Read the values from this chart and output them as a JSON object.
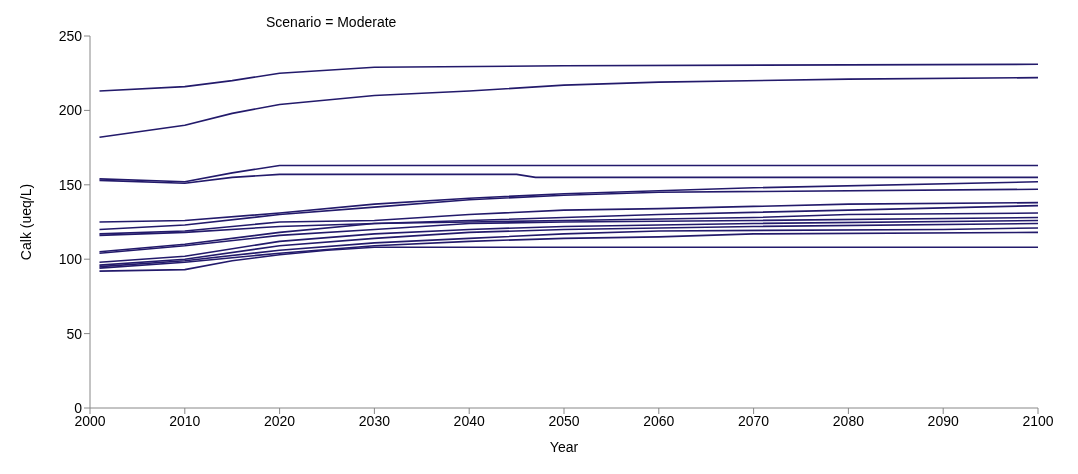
{
  "chart_data": {
    "type": "line",
    "title": "Scenario = Moderate",
    "xlabel": "Year",
    "ylabel": "Calk  (ueq/L)",
    "xlim": [
      2000,
      2100
    ],
    "xticks": [
      2000,
      2010,
      2020,
      2030,
      2040,
      2050,
      2060,
      2070,
      2080,
      2090,
      2100
    ],
    "ylim": [
      0,
      250
    ],
    "yticks": [
      0,
      50,
      100,
      150,
      200,
      250
    ],
    "grid": false,
    "marker": "none",
    "line_style": "solid",
    "series": [
      {
        "color": "#231a6b",
        "x": [
          2001,
          2010,
          2015,
          2020,
          2030,
          2050,
          2100
        ],
        "values": [
          213,
          216,
          220,
          225,
          229,
          230,
          231
        ]
      },
      {
        "color": "#231a6b",
        "x": [
          2001,
          2010,
          2015,
          2020,
          2030,
          2040,
          2050,
          2060,
          2080,
          2100
        ],
        "values": [
          182,
          190,
          198,
          204,
          210,
          213,
          217,
          219,
          221,
          222
        ]
      },
      {
        "color": "#231a6b",
        "x": [
          2001,
          2010,
          2015,
          2020,
          2050,
          2100
        ],
        "values": [
          154,
          152,
          158,
          163,
          163,
          163
        ]
      },
      {
        "color": "#231a6b",
        "x": [
          2001,
          2010,
          2015,
          2020,
          2045,
          2047,
          2100
        ],
        "values": [
          153,
          151,
          155,
          157,
          157,
          155,
          155
        ]
      },
      {
        "color": "#231a6b",
        "x": [
          2001,
          2010,
          2020,
          2030,
          2040,
          2050,
          2070,
          2100
        ],
        "values": [
          125,
          126,
          131,
          137,
          141,
          144,
          148,
          152
        ]
      },
      {
        "color": "#231a6b",
        "x": [
          2001,
          2010,
          2020,
          2030,
          2040,
          2050,
          2060,
          2100
        ],
        "values": [
          120,
          123,
          130,
          135,
          140,
          143,
          145,
          147
        ]
      },
      {
        "color": "#231a6b",
        "x": [
          2001,
          2010,
          2020,
          2030,
          2040,
          2050,
          2060,
          2080,
          2100
        ],
        "values": [
          117,
          119,
          125,
          126,
          130,
          133,
          134,
          137,
          138
        ]
      },
      {
        "color": "#231a6b",
        "x": [
          2001,
          2010,
          2020,
          2030,
          2040,
          2050,
          2070,
          2080,
          2100
        ],
        "values": [
          116,
          118,
          122,
          124,
          125,
          126,
          128,
          130,
          131
        ]
      },
      {
        "color": "#231a6b",
        "x": [
          2001,
          2010,
          2020,
          2030,
          2040,
          2050,
          2060,
          2080,
          2100
        ],
        "values": [
          105,
          110,
          118,
          124,
          126,
          128,
          130,
          133,
          136
        ]
      },
      {
        "color": "#231a6b",
        "x": [
          2001,
          2010,
          2020,
          2030,
          2040,
          2050,
          2070,
          2100
        ],
        "values": [
          104,
          109,
          116,
          120,
          124,
          125,
          126,
          128
        ]
      },
      {
        "color": "#231a6b",
        "x": [
          2001,
          2010,
          2020,
          2030,
          2040,
          2050,
          2070,
          2100
        ],
        "values": [
          98,
          102,
          112,
          117,
          120,
          122,
          124,
          126
        ]
      },
      {
        "color": "#231a6b",
        "x": [
          2001,
          2010,
          2020,
          2030,
          2040,
          2050,
          2070,
          2100
        ],
        "values": [
          96,
          100,
          109,
          114,
          118,
          120,
          122,
          124
        ]
      },
      {
        "color": "#231a6b",
        "x": [
          2001,
          2010,
          2020,
          2030,
          2040,
          2050,
          2060,
          2090,
          2100
        ],
        "values": [
          95,
          99,
          106,
          111,
          114,
          117,
          119,
          120,
          121
        ]
      },
      {
        "color": "#231a6b",
        "x": [
          2001,
          2010,
          2020,
          2030,
          2040,
          2050,
          2060,
          2070,
          2100
        ],
        "values": [
          94,
          98,
          104,
          109,
          112,
          114,
          115,
          117,
          118
        ]
      },
      {
        "color": "#231a6b",
        "x": [
          2001,
          2010,
          2015,
          2020,
          2025,
          2030,
          2100
        ],
        "values": [
          92,
          93,
          99,
          103,
          106,
          108,
          108
        ]
      }
    ]
  }
}
